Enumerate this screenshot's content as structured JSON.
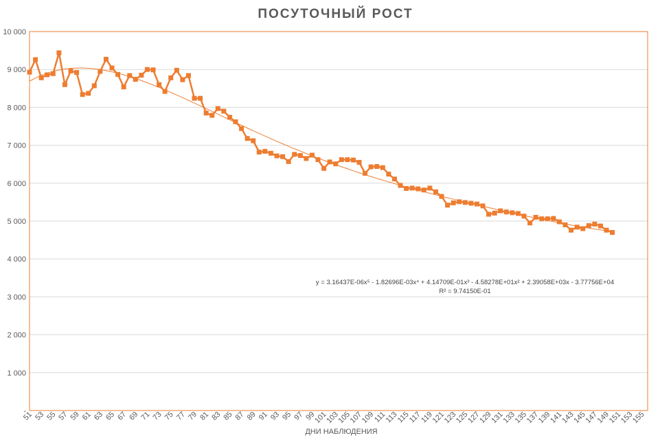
{
  "chart_data": {
    "type": "line",
    "title": "ПОСУТОЧНЫЙ РОСТ",
    "xlabel": "ДНИ НАБЛЮДЕНИЯ",
    "ylabel": "",
    "ylim": [
      0,
      10000
    ],
    "xlim": [
      51,
      156
    ],
    "y_ticks": [
      0,
      1000,
      2000,
      3000,
      4000,
      5000,
      6000,
      7000,
      8000,
      9000,
      10000
    ],
    "y_tick_labels": [
      "-",
      "1 000",
      "2 000",
      "3 000",
      "4 000",
      "5 000",
      "6 000",
      "7 000",
      "8 000",
      "9 000",
      "10 000"
    ],
    "x_ticks": [
      51,
      53,
      55,
      57,
      59,
      61,
      63,
      65,
      67,
      69,
      71,
      73,
      75,
      77,
      79,
      81,
      83,
      85,
      87,
      89,
      91,
      93,
      95,
      97,
      99,
      101,
      103,
      105,
      107,
      109,
      111,
      113,
      115,
      117,
      119,
      121,
      123,
      125,
      127,
      129,
      131,
      133,
      135,
      137,
      139,
      141,
      143,
      145,
      147,
      149,
      151,
      153,
      155
    ],
    "grid": true,
    "legend": "none",
    "colors": {
      "series": "#ED7D31",
      "trend": "#ED7D31",
      "grid": "#d9d9d9",
      "frame": "#ED7D31"
    },
    "x": [
      51,
      52,
      53,
      54,
      55,
      56,
      57,
      58,
      59,
      60,
      61,
      62,
      63,
      64,
      65,
      66,
      67,
      68,
      69,
      70,
      71,
      72,
      73,
      74,
      75,
      76,
      77,
      78,
      79,
      80,
      81,
      82,
      83,
      84,
      85,
      86,
      87,
      88,
      89,
      90,
      91,
      92,
      93,
      94,
      95,
      96,
      97,
      98,
      99,
      100,
      101,
      102,
      103,
      104,
      105,
      106,
      107,
      108,
      109,
      110,
      111,
      112,
      113,
      114,
      115,
      116,
      117,
      118,
      119,
      120,
      121,
      122,
      123,
      124,
      125,
      126,
      127,
      128,
      129,
      130,
      131,
      132,
      133,
      134,
      135,
      136,
      137,
      138,
      139,
      140,
      141,
      142,
      143,
      144,
      145,
      146,
      147,
      148,
      149,
      150
    ],
    "series": [
      {
        "values": [
          8930,
          9260,
          8780,
          8860,
          8890,
          9440,
          8600,
          8960,
          8920,
          8340,
          8370,
          8570,
          8950,
          9270,
          9040,
          8870,
          8540,
          8840,
          8740,
          8850,
          9000,
          8990,
          8600,
          8420,
          8780,
          8980,
          8730,
          8840,
          8240,
          8240,
          7850,
          7790,
          7970,
          7900,
          7740,
          7620,
          7440,
          7180,
          7120,
          6820,
          6840,
          6790,
          6720,
          6700,
          6570,
          6760,
          6730,
          6650,
          6740,
          6620,
          6390,
          6560,
          6510,
          6620,
          6620,
          6610,
          6550,
          6260,
          6430,
          6440,
          6410,
          6240,
          6110,
          5940,
          5860,
          5870,
          5850,
          5820,
          5870,
          5770,
          5650,
          5420,
          5480,
          5510,
          5490,
          5470,
          5450,
          5400,
          5180,
          5210,
          5270,
          5240,
          5220,
          5200,
          5130,
          4950,
          5100,
          5060,
          5060,
          5070,
          4980,
          4900,
          4760,
          4840,
          4800,
          4880,
          4920,
          4870,
          4760,
          4700
        ]
      }
    ],
    "trendline": {
      "type": "polynomial",
      "coefficients": [
        3.16437e-06,
        -0.00182696,
        0.414709,
        -45.8278,
        2390.58,
        -37775.6
      ],
      "equation_label": "y = 3.16437E-06x⁵ - 1.82696E-03x⁴ + 4.14709E-01x³ - 4.58278E+01x² + 2.39058E+03x - 3.77756E+04",
      "r2_label": "R² = 9.74150E-01"
    }
  }
}
